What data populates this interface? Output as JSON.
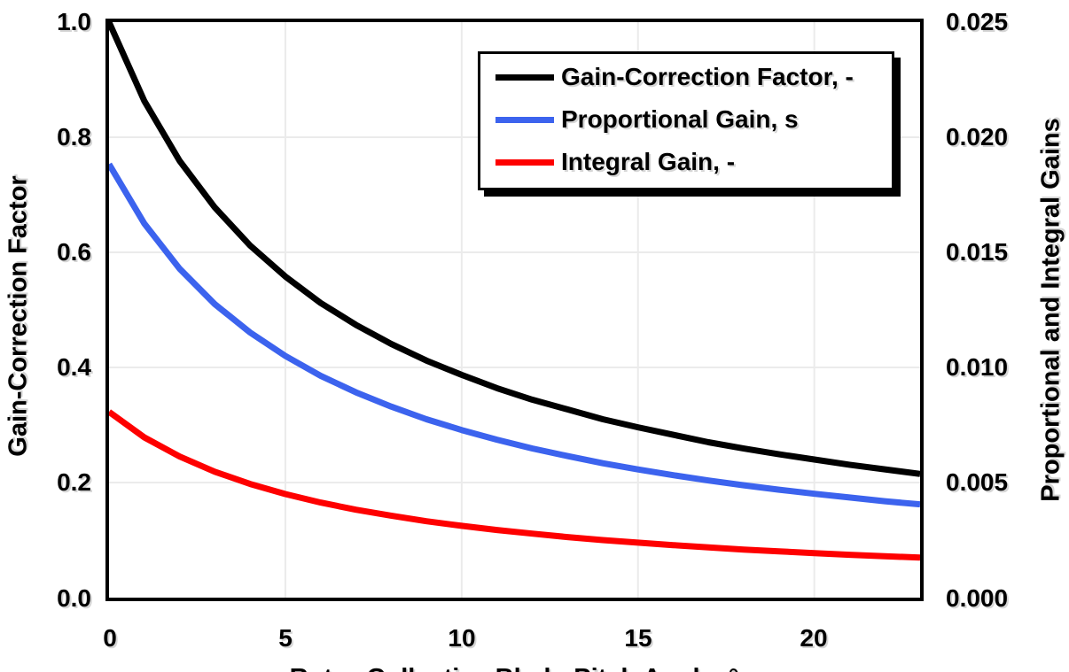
{
  "chart_data": {
    "type": "line",
    "grid": true,
    "grid_color": "#EBEBEB",
    "legend_position": "top-right-inside",
    "x_axis": {
      "label": "Rotor-Collective Blade-Pitch Angle, °",
      "min": 0,
      "max": 23,
      "ticks": [
        "0",
        "5",
        "10",
        "15",
        "20"
      ],
      "tick_values": [
        0,
        5,
        10,
        15,
        20
      ],
      "gridline_values": [
        5,
        10,
        15,
        20
      ]
    },
    "left_axis": {
      "label": "Gain-Correction Factor",
      "min": 0.0,
      "max": 1.0,
      "ticks": [
        "1.0",
        "0.8",
        "0.6",
        "0.4",
        "0.2",
        "0.0"
      ],
      "gridline_values": [
        0.2,
        0.4,
        0.6,
        0.8
      ]
    },
    "right_axis": {
      "label": "Proportional and Integral Gains",
      "min": 0.0,
      "max": 0.025,
      "ticks": [
        "0.025",
        "0.020",
        "0.015",
        "0.010",
        "0.005",
        "0.000"
      ]
    },
    "x": [
      0,
      1,
      2,
      3,
      4,
      5,
      6,
      7,
      8,
      9,
      10,
      11,
      12,
      13,
      14,
      15,
      16,
      17,
      18,
      19,
      20,
      21,
      22,
      23
    ],
    "series": [
      {
        "name": "Gain-Correction Factor, -",
        "axis": "left",
        "color": "#000000",
        "values": [
          1.0,
          0.863,
          0.759,
          0.678,
          0.612,
          0.558,
          0.512,
          0.474,
          0.441,
          0.412,
          0.387,
          0.364,
          0.344,
          0.327,
          0.31,
          0.296,
          0.283,
          0.27,
          0.259,
          0.249,
          0.24,
          0.231,
          0.223,
          0.215
        ]
      },
      {
        "name": "Proportional Gain, s",
        "axis": "right",
        "color": "#3C63EE",
        "values": [
          0.01883,
          0.01625,
          0.01429,
          0.01275,
          0.01152,
          0.0105,
          0.00964,
          0.00892,
          0.0083,
          0.00775,
          0.00728,
          0.00686,
          0.00648,
          0.00615,
          0.00584,
          0.00557,
          0.00532,
          0.00509,
          0.00488,
          0.00469,
          0.00451,
          0.00435,
          0.00419,
          0.00405
        ]
      },
      {
        "name": "Integral Gain, -",
        "axis": "right",
        "color": "#FE0000",
        "values": [
          0.00807,
          0.00696,
          0.00613,
          0.00547,
          0.00494,
          0.0045,
          0.00413,
          0.00382,
          0.00356,
          0.00332,
          0.00312,
          0.00294,
          0.00278,
          0.00263,
          0.0025,
          0.00239,
          0.00228,
          0.00218,
          0.00209,
          0.00201,
          0.00193,
          0.00186,
          0.0018,
          0.00174
        ]
      }
    ]
  }
}
